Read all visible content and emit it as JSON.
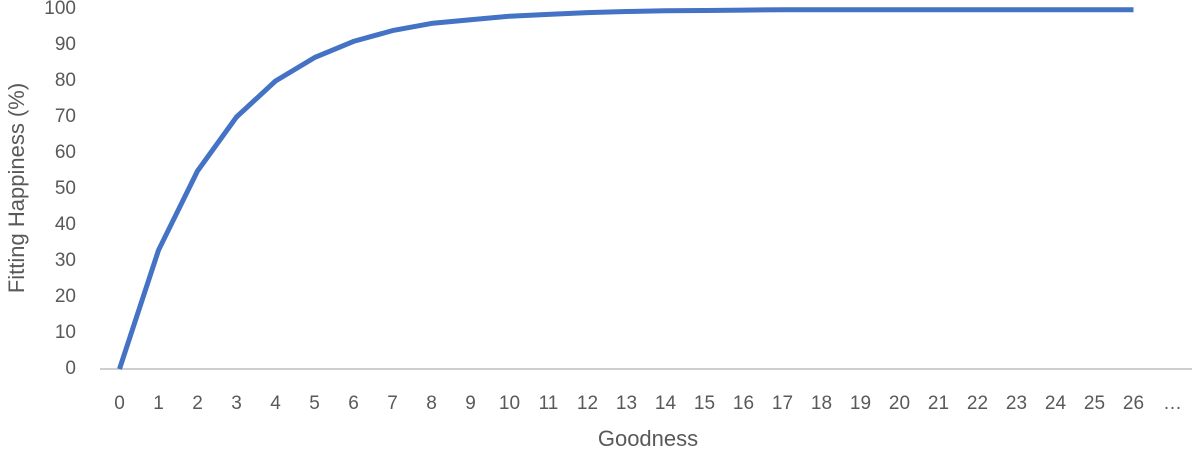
{
  "chart_data": {
    "type": "line",
    "x_label": "Goodness",
    "y_label": "Fitting Happiness (%)",
    "categories": [
      "0",
      "1",
      "2",
      "3",
      "4",
      "5",
      "6",
      "7",
      "8",
      "9",
      "10",
      "11",
      "12",
      "13",
      "14",
      "15",
      "16",
      "17",
      "18",
      "19",
      "20",
      "21",
      "22",
      "23",
      "24",
      "25",
      "26",
      "…"
    ],
    "series": [
      {
        "name": "Fitting Happiness",
        "color": "#4472c4",
        "values": [
          0,
          33,
          55,
          70,
          80,
          86.5,
          91,
          94,
          96,
          97,
          98,
          98.5,
          99,
          99.3,
          99.5,
          99.6,
          99.7,
          99.8,
          99.8,
          99.8,
          99.8,
          99.8,
          99.8,
          99.8,
          99.8,
          99.8,
          99.8,
          null
        ]
      }
    ],
    "ylim": [
      0,
      100
    ],
    "yticks": [
      0,
      10,
      20,
      30,
      40,
      50,
      60,
      70,
      80,
      90,
      100
    ],
    "grid": false
  }
}
